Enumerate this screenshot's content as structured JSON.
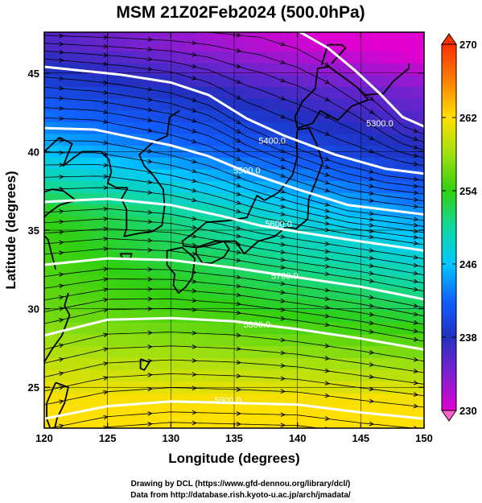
{
  "chart_data": {
    "type": "heatmap",
    "title": "MSM 21Z02Feb2024 (500.0hPa)",
    "xlabel": "Longitude (degrees)",
    "ylabel": "Latitude  (degrees)",
    "xlim": [
      120,
      150
    ],
    "ylim": [
      22.4,
      47.6
    ],
    "xticks": [
      120,
      125,
      130,
      135,
      140,
      145,
      150
    ],
    "yticks": [
      25,
      30,
      35,
      40,
      45
    ],
    "colorbar": {
      "min": 230,
      "max": 270,
      "ticks": [
        230,
        238,
        246,
        254,
        262,
        270
      ],
      "colors": [
        "#e000d0",
        "#8020d0",
        "#2030c0",
        "#1060ff",
        "#00c8ff",
        "#10d8a0",
        "#30d010",
        "#a0e010",
        "#ffe000",
        "#ff8000",
        "#ff3000"
      ]
    },
    "temperature_field_note_values": [
      {
        "lat": 24,
        "lon_west": 262,
        "lon_east": 262
      },
      {
        "lat": 30,
        "lon_west": 256,
        "lon_east": 252
      },
      {
        "lat": 36,
        "lon_west": 254,
        "lon_east": 244
      },
      {
        "lat": 40,
        "lon_west": 246,
        "lon_east": 238
      },
      {
        "lat": 44,
        "lon_west": 240,
        "lon_east": 234
      },
      {
        "lat": 47,
        "lon_west": 236,
        "lon_east": 228
      }
    ],
    "contours": [
      {
        "level": "5300.0",
        "points": [
          [
            137,
            48.4
          ],
          [
            140,
            47.7
          ],
          [
            142.4,
            46.6
          ],
          [
            144.5,
            45.2
          ],
          [
            146.5,
            43.7
          ],
          [
            148.3,
            42.2
          ],
          [
            150,
            41.6
          ]
        ]
      },
      {
        "level": "5400.0",
        "points": [
          [
            120,
            45.4
          ],
          [
            126,
            44.9
          ],
          [
            130,
            44.4
          ],
          [
            133,
            43.6
          ],
          [
            136,
            42.1
          ],
          [
            139,
            41.0
          ],
          [
            143,
            39.8
          ],
          [
            147,
            38.9
          ],
          [
            150,
            38.6
          ]
        ]
      },
      {
        "level": "5500.0",
        "points": [
          [
            120,
            41.5
          ],
          [
            124,
            41.4
          ],
          [
            127,
            40.9
          ],
          [
            130,
            40.4
          ],
          [
            133,
            39.7
          ],
          [
            136,
            38.7
          ],
          [
            140,
            37.6
          ],
          [
            144,
            36.6
          ],
          [
            150,
            36.0
          ]
        ]
      },
      {
        "level": "5600.0",
        "points": [
          [
            120,
            36.8
          ],
          [
            125,
            37.0
          ],
          [
            130,
            36.6
          ],
          [
            134,
            35.9
          ],
          [
            137,
            35.3
          ],
          [
            140,
            34.9
          ],
          [
            144,
            34.4
          ],
          [
            150,
            33.7
          ]
        ]
      },
      {
        "level": "5700.0",
        "points": [
          [
            120,
            32.8
          ],
          [
            125,
            33.2
          ],
          [
            130,
            33.1
          ],
          [
            135,
            32.6
          ],
          [
            140,
            32.0
          ],
          [
            145,
            31.4
          ],
          [
            150,
            30.6
          ]
        ]
      },
      {
        "level": "5800.0",
        "points": [
          [
            120,
            28.3
          ],
          [
            125,
            29.3
          ],
          [
            130,
            29.4
          ],
          [
            135,
            29.2
          ],
          [
            140,
            28.7
          ],
          [
            145,
            28.1
          ],
          [
            150,
            27.4
          ]
        ]
      },
      {
        "level": "5900.0",
        "points": [
          [
            120,
            23.0
          ],
          [
            125,
            23.8
          ],
          [
            130,
            24.1
          ],
          [
            135,
            24.0
          ],
          [
            140,
            23.9
          ],
          [
            145,
            23.4
          ],
          [
            150,
            23.0
          ]
        ]
      }
    ],
    "contour_labels": [
      {
        "text": "5300.0",
        "lon": 146.5,
        "lat": 41.6
      },
      {
        "text": "5400.0",
        "lon": 138.0,
        "lat": 40.5
      },
      {
        "text": "5500.0",
        "lon": 136.0,
        "lat": 38.6
      },
      {
        "text": "5600.0",
        "lon": 138.5,
        "lat": 35.2
      },
      {
        "text": "5700.0",
        "lon": 139.0,
        "lat": 31.9
      },
      {
        "text": "5800.0",
        "lon": 136.8,
        "lat": 28.8
      },
      {
        "text": "5900.0",
        "lon": 134.5,
        "lat": 24.0
      }
    ],
    "coastlines": [
      [
        [
          140.0,
          41.4
        ],
        [
          140.9,
          41.5
        ],
        [
          141.5,
          40.5
        ],
        [
          142.0,
          39.3
        ],
        [
          141.4,
          38.0
        ],
        [
          140.9,
          37.0
        ],
        [
          140.8,
          35.7
        ],
        [
          139.9,
          35.1
        ],
        [
          139.1,
          35.2
        ],
        [
          138.2,
          34.6
        ],
        [
          136.9,
          34.3
        ],
        [
          135.8,
          33.5
        ],
        [
          135.1,
          34.3
        ],
        [
          133.5,
          34.3
        ],
        [
          132.0,
          33.9
        ],
        [
          131.0,
          34.0
        ],
        [
          130.9,
          34.3
        ],
        [
          131.6,
          34.7
        ],
        [
          132.8,
          35.5
        ],
        [
          134.4,
          35.6
        ],
        [
          136.0,
          35.8
        ],
        [
          136.8,
          37.2
        ],
        [
          137.4,
          36.9
        ],
        [
          138.5,
          37.4
        ],
        [
          139.6,
          38.5
        ],
        [
          140.0,
          39.7
        ],
        [
          139.9,
          40.7
        ],
        [
          140.0,
          41.4
        ]
      ],
      [
        [
          140.0,
          41.5
        ],
        [
          141.2,
          41.8
        ],
        [
          141.8,
          42.6
        ],
        [
          143.2,
          42.0
        ],
        [
          144.3,
          42.9
        ],
        [
          145.6,
          43.3
        ],
        [
          144.7,
          44.1
        ],
        [
          142.5,
          45.4
        ],
        [
          141.6,
          45.3
        ],
        [
          141.4,
          44.0
        ],
        [
          140.4,
          43.2
        ],
        [
          139.8,
          42.2
        ],
        [
          140.0,
          41.5
        ]
      ],
      [
        [
          129.7,
          33.7
        ],
        [
          130.9,
          33.9
        ],
        [
          131.9,
          33.2
        ],
        [
          131.7,
          32.0
        ],
        [
          131.2,
          31.4
        ],
        [
          130.6,
          31.0
        ],
        [
          130.2,
          31.5
        ],
        [
          130.3,
          32.2
        ],
        [
          129.7,
          32.8
        ],
        [
          129.7,
          33.7
        ]
      ],
      [
        [
          132.0,
          33.9
        ],
        [
          132.9,
          34.0
        ],
        [
          134.2,
          34.3
        ],
        [
          134.6,
          33.8
        ],
        [
          134.2,
          33.3
        ],
        [
          133.2,
          32.9
        ],
        [
          132.5,
          32.9
        ],
        [
          132.0,
          33.5
        ],
        [
          132.0,
          33.9
        ]
      ],
      [
        [
          126.3,
          34.6
        ],
        [
          127.5,
          34.8
        ],
        [
          128.5,
          34.9
        ],
        [
          129.3,
          35.3
        ],
        [
          129.5,
          36.5
        ],
        [
          129.4,
          37.6
        ],
        [
          128.6,
          38.5
        ],
        [
          127.9,
          39.1
        ],
        [
          127.5,
          39.8
        ],
        [
          128.6,
          40.6
        ],
        [
          129.7,
          41.0
        ],
        [
          129.9,
          42.2
        ],
        [
          130.7,
          42.6
        ]
      ],
      [
        [
          126.6,
          37.7
        ],
        [
          126.1,
          37.0
        ],
        [
          126.5,
          36.3
        ],
        [
          126.5,
          35.1
        ],
        [
          126.3,
          34.6
        ]
      ],
      [
        [
          124.5,
          40.0
        ],
        [
          125.1,
          39.5
        ],
        [
          125.3,
          38.7
        ],
        [
          125.0,
          38.0
        ],
        [
          125.7,
          37.7
        ],
        [
          126.6,
          37.7
        ]
      ],
      [
        [
          121.2,
          40.9
        ],
        [
          122.2,
          40.5
        ],
        [
          121.5,
          39.1
        ],
        [
          122.3,
          39.6
        ],
        [
          123.0,
          40.0
        ],
        [
          124.5,
          40.0
        ]
      ],
      [
        [
          117.9,
          38.9
        ],
        [
          119.0,
          39.3
        ],
        [
          120.0,
          40.0
        ],
        [
          121.2,
          40.9
        ]
      ],
      [
        [
          120.2,
          36.0
        ],
        [
          121.2,
          36.6
        ],
        [
          122.5,
          36.9
        ],
        [
          121.5,
          37.5
        ],
        [
          120.6,
          37.6
        ],
        [
          119.2,
          37.2
        ],
        [
          118.9,
          37.8
        ],
        [
          118.2,
          38.5
        ]
      ],
      [
        [
          120.9,
          32.5
        ],
        [
          120.3,
          34.4
        ],
        [
          119.3,
          35.2
        ],
        [
          120.2,
          36.0
        ]
      ],
      [
        [
          121.9,
          31.0
        ],
        [
          121.6,
          30.2
        ],
        [
          122.0,
          29.6
        ],
        [
          121.4,
          28.3
        ],
        [
          120.6,
          27.4
        ],
        [
          119.7,
          26.2
        ],
        [
          119.1,
          25.2
        ],
        [
          118.3,
          24.4
        ]
      ],
      [
        [
          120.9,
          25.3
        ],
        [
          121.9,
          25.0
        ],
        [
          121.6,
          24.0
        ],
        [
          121.0,
          23.0
        ],
        [
          120.7,
          21.9
        ],
        [
          120.2,
          23.0
        ],
        [
          120.2,
          24.0
        ],
        [
          120.9,
          25.3
        ]
      ],
      [
        [
          126.0,
          33.5
        ],
        [
          126.9,
          33.5
        ],
        [
          126.8,
          33.2
        ],
        [
          126.2,
          33.2
        ],
        [
          126.0,
          33.5
        ]
      ],
      [
        [
          127.6,
          26.8
        ],
        [
          128.3,
          26.6
        ],
        [
          127.9,
          26.1
        ],
        [
          127.6,
          26.2
        ],
        [
          127.6,
          26.8
        ]
      ],
      [
        [
          141.9,
          45.5
        ],
        [
          142.4,
          46.8
        ],
        [
          143.5,
          46.8
        ],
        [
          143.8,
          46.6
        ],
        [
          142.7,
          45.6
        ]
      ],
      [
        [
          145.3,
          43.6
        ],
        [
          146.8,
          43.7
        ],
        [
          147.6,
          44.5
        ],
        [
          148.8,
          45.3
        ],
        [
          148.8,
          45.6
        ]
      ]
    ]
  },
  "credits": {
    "line1": "Drawing by DCL (https://www.gfd-dennou.org/library/dcl/)",
    "line2": "Data from http://database.rish.kyoto-u.ac.jp/arch/jmadata/"
  }
}
